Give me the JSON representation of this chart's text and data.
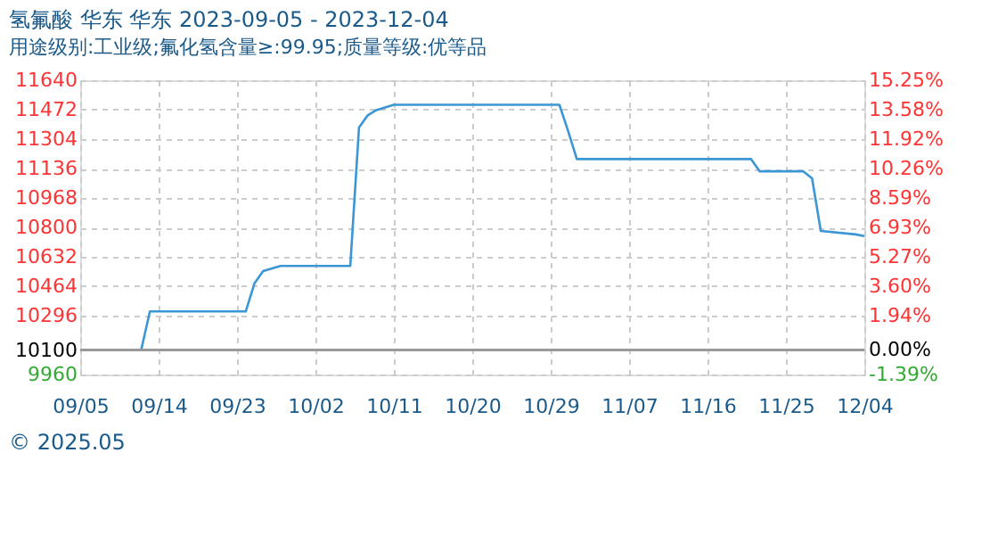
{
  "chart_data": {
    "type": "line",
    "title": "氢氟酸 华东 华东 2023-09-05 - 2023-12-04",
    "subtitle": "用途级别:工业级;氟化氢含量≥:99.95;质量等级:优等品",
    "x": [
      "2023-09-05",
      "2023-09-12",
      "2023-09-13",
      "2023-09-24",
      "2023-09-25",
      "2023-09-26",
      "2023-09-28",
      "2023-10-06",
      "2023-10-07",
      "2023-10-08",
      "2023-10-09",
      "2023-10-11",
      "2023-10-30",
      "2023-10-31",
      "2023-11-01",
      "2023-11-21",
      "2023-11-22",
      "2023-11-27",
      "2023-11-28",
      "2023-11-29",
      "2023-12-03",
      "2023-12-04"
    ],
    "series": [
      {
        "color": "#3a96d4",
        "values": [
          10100,
          10100,
          10320,
          10320,
          10480,
          10550,
          10580,
          10580,
          11370,
          11440,
          11470,
          11500,
          11500,
          11350,
          11190,
          11190,
          11120,
          11120,
          11080,
          10780,
          10760,
          10750
        ]
      }
    ],
    "xlim": [
      "2023-09-05",
      "2023-12-04"
    ],
    "xticks": [
      {
        "value": "2023-09-05",
        "label": "09/05"
      },
      {
        "value": "2023-09-14",
        "label": "09/14"
      },
      {
        "value": "2023-09-23",
        "label": "09/23"
      },
      {
        "value": "2023-10-02",
        "label": "10/02"
      },
      {
        "value": "2023-10-11",
        "label": "10/11"
      },
      {
        "value": "2023-10-20",
        "label": "10/20"
      },
      {
        "value": "2023-10-29",
        "label": "10/29"
      },
      {
        "value": "2023-11-07",
        "label": "11/07"
      },
      {
        "value": "2023-11-16",
        "label": "11/16"
      },
      {
        "value": "2023-11-25",
        "label": "11/25"
      },
      {
        "value": "2023-12-04",
        "label": "12/04"
      }
    ],
    "ylim": [
      9960,
      11640
    ],
    "yticks": [
      9960,
      10100,
      10296,
      10464,
      10632,
      10800,
      10968,
      11136,
      11304,
      11472,
      11640
    ],
    "y2lim": [
      -1.39,
      15.25
    ],
    "y2ticks": [
      {
        "value": -1.39,
        "label": "-1.39%"
      },
      {
        "value": 0,
        "label": "0.00%"
      },
      {
        "value": 1.94,
        "label": "1.94%"
      },
      {
        "value": 3.6,
        "label": "3.60%"
      },
      {
        "value": 5.27,
        "label": "5.27%"
      },
      {
        "value": 6.93,
        "label": "6.93%"
      },
      {
        "value": 8.59,
        "label": "8.59%"
      },
      {
        "value": 10.26,
        "label": "10.26%"
      },
      {
        "value": 11.92,
        "label": "11.92%"
      },
      {
        "value": 13.58,
        "label": "13.58%"
      },
      {
        "value": 15.25,
        "label": "15.25%"
      }
    ],
    "ref_lines": [
      {
        "axis": "y",
        "value": 10100,
        "color": "#999999",
        "line_style": "solid"
      }
    ],
    "grid": true,
    "marker": "none",
    "line_style": "solid",
    "annotations": [
      "© 2025.05"
    ]
  }
}
